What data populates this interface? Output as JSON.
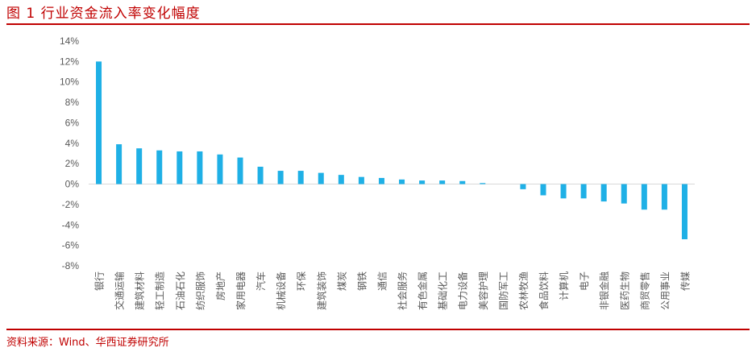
{
  "header": {
    "title": "图 1 行业资金流入率变化幅度"
  },
  "footer": {
    "source": "资料来源：Wind、华西证券研究所"
  },
  "colors": {
    "bar": "#1fb0e6",
    "accent": "#c00000",
    "axis": "#d9d9d9"
  },
  "chart_data": {
    "type": "bar",
    "title": "",
    "xlabel": "",
    "ylabel": "",
    "ylim": [
      -8,
      14
    ],
    "yticks": [
      14,
      12,
      10,
      8,
      6,
      4,
      2,
      0,
      -2,
      -4,
      -6,
      -8
    ],
    "ytick_labels": [
      "14%",
      "12%",
      "10%",
      "8%",
      "6%",
      "4%",
      "2%",
      "0%",
      "-2%",
      "-4%",
      "-6%",
      "-8%"
    ],
    "grid": false,
    "legend": "none",
    "categories": [
      "银行",
      "交通运输",
      "建筑材料",
      "轻工制造",
      "石油石化",
      "纺织服饰",
      "房地产",
      "家用电器",
      "汽车",
      "机械设备",
      "环保",
      "建筑装饰",
      "煤炭",
      "钢铁",
      "通信",
      "社会服务",
      "有色金属",
      "基础化工",
      "电力设备",
      "美容护理",
      "国防军工",
      "农林牧渔",
      "食品饮料",
      "计算机",
      "电子",
      "非银金融",
      "医药生物",
      "商贸零售",
      "公用事业",
      "传媒"
    ],
    "values": [
      12.0,
      3.9,
      3.5,
      3.3,
      3.2,
      3.2,
      2.9,
      2.6,
      1.7,
      1.3,
      1.3,
      1.1,
      0.9,
      0.7,
      0.6,
      0.45,
      0.35,
      0.35,
      0.3,
      0.1,
      0.0,
      -0.5,
      -1.1,
      -1.4,
      -1.4,
      -1.7,
      -1.9,
      -2.5,
      -2.5,
      -5.4
    ]
  }
}
